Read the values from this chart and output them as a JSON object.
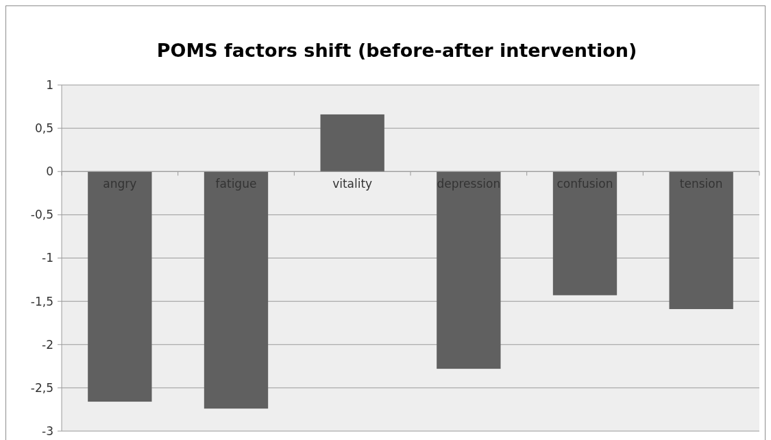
{
  "chart_data": {
    "type": "bar",
    "title": "POMS factors shift (before-after intervention)",
    "categories": [
      "angry",
      "fatigue",
      "vitality",
      "depression",
      "confusion",
      "tension"
    ],
    "values": [
      -2.66,
      -2.74,
      0.66,
      -2.28,
      -1.43,
      -1.59
    ],
    "color": "#606060",
    "ylim": [
      -3,
      1
    ],
    "yticks": [
      {
        "value": -3,
        "label": "-3"
      },
      {
        "value": -2.5,
        "label": "-2,5"
      },
      {
        "value": -2,
        "label": "-2"
      },
      {
        "value": -1.5,
        "label": "-1,5"
      },
      {
        "value": -1,
        "label": "-1"
      },
      {
        "value": -0.5,
        "label": "-0,5"
      },
      {
        "value": 0,
        "label": "0"
      },
      {
        "value": 0.5,
        "label": "0,5"
      },
      {
        "value": 1,
        "label": "1"
      }
    ],
    "grid": "y"
  }
}
